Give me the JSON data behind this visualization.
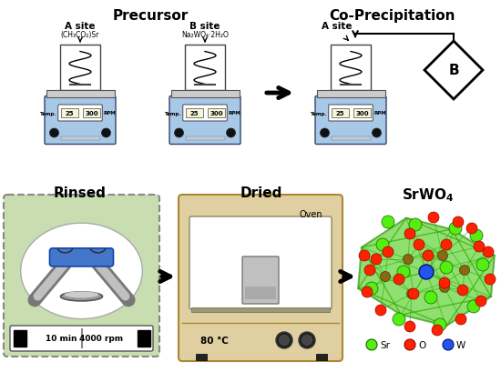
{
  "precursor_title": "Precursor",
  "coprecip_title": "Co-Precipitation",
  "rinsed_title": "Rinsed",
  "dried_title": "Dried",
  "srwo4_title": "SrWO$_4$",
  "a_site_label": "A site",
  "b_site_label": "B site",
  "a_site_label2": "A site",
  "b_label": "B",
  "formula_a": "(CH₃CO₂)Sr",
  "formula_b": "Na₂WO₄·2H₂O",
  "temp_label": "Temp.",
  "rpm_label": "RPM",
  "temp_val": "25",
  "rpm_val": "300",
  "oven_label": "Oven",
  "temp_oven": "80 °C",
  "centrifuge_time": "10 min",
  "centrifuge_rpm": "4000 rpm",
  "legend_sr": "Sr",
  "legend_o": "O",
  "legend_w": "W",
  "hotplate_color": "#a8c8e8",
  "centrifuge_bg": "#c8ddb0",
  "oven_bg": "#e0cfa0",
  "bg_color": "#ffffff",
  "sr_color": "#55ee11",
  "o_color": "#ff2200",
  "w_color": "#2255ee",
  "w_dark_color": "#8B6914"
}
